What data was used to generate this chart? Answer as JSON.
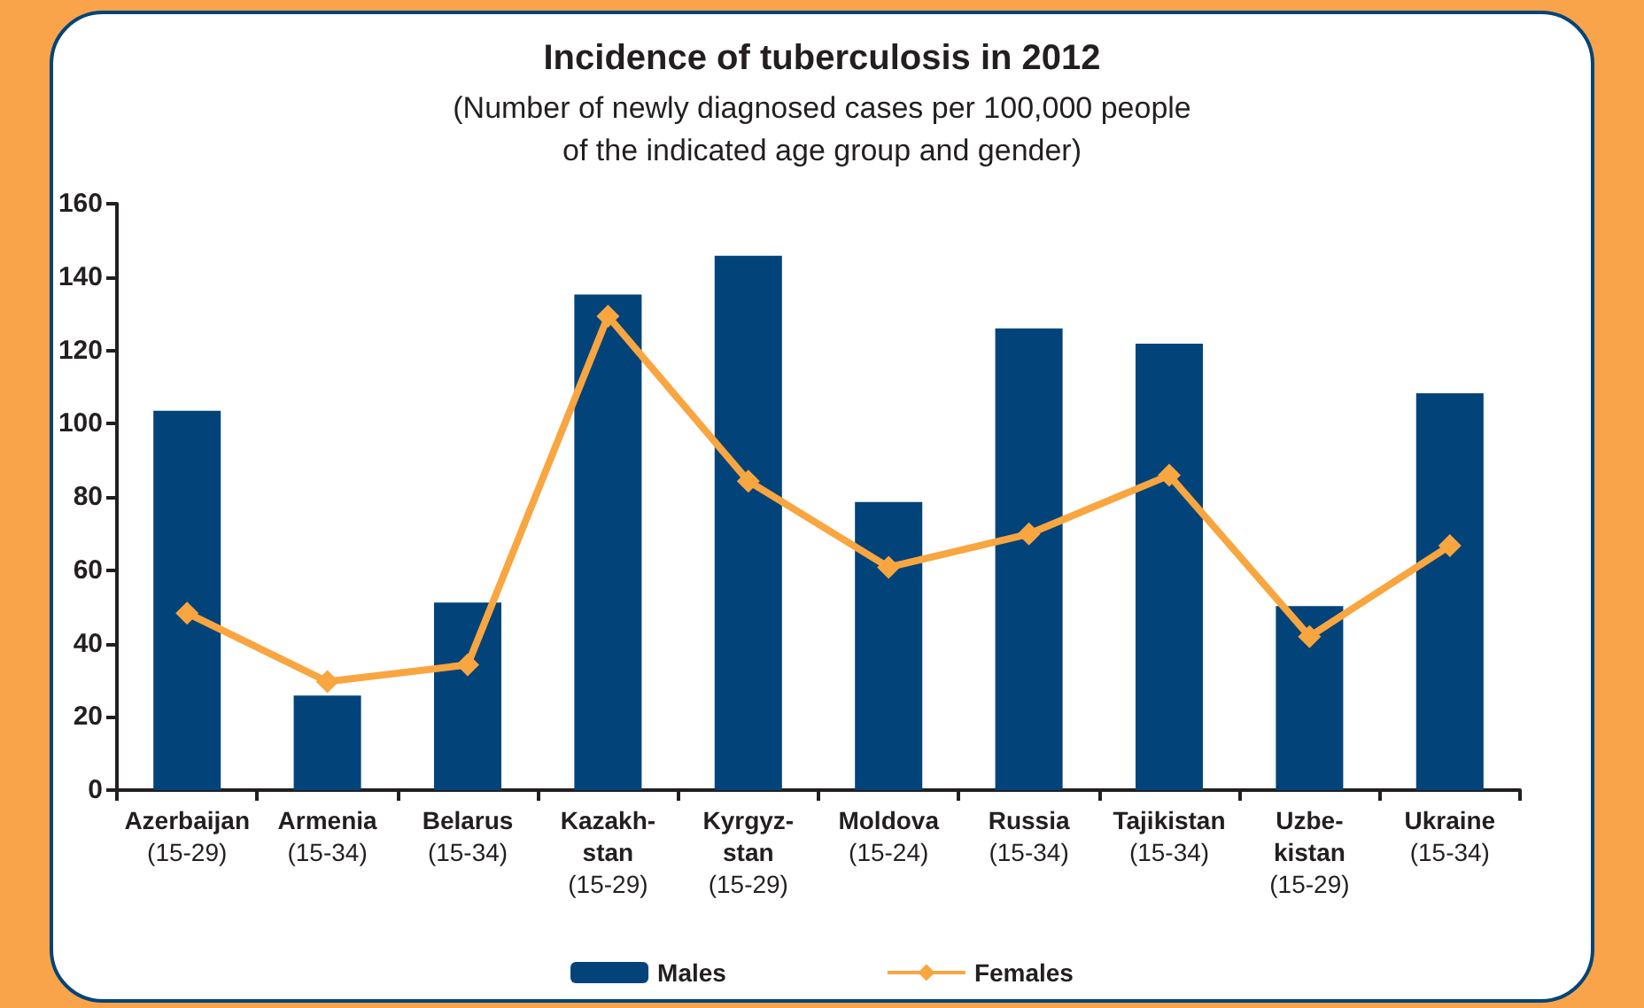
{
  "chart_data": {
    "type": "bar",
    "title": "Incidence of tuberculosis in 2012",
    "subtitle": "(Number of newly diagnosed cases per 100,000 people\nof the indicated age group and gender)",
    "categories": [
      "Azerbaijan\n(15-29)",
      "Armenia\n(15-34)",
      "Belarus\n(15-34)",
      "Kazakh-\nstan\n(15-29)",
      "Kyrgyz-\nstan\n(15-29)",
      "Moldova\n(15-24)",
      "Russia\n(15-34)",
      "Tajikistan\n(15-34)",
      "Uzbe-\nkistan\n(15-29)",
      "Ukraine\n(15-34)"
    ],
    "series": [
      {
        "name": "Males",
        "color": "#02447a",
        "values": [
          103.5,
          25.8,
          51.2,
          135.2,
          145.8,
          78.6,
          126,
          121.8,
          50.2,
          108.3
        ]
      },
      {
        "name": "Females",
        "type": "line",
        "color": "#f9a540",
        "values": [
          48.3,
          29.6,
          34.2,
          129.3,
          84.3,
          60.8,
          69.9,
          85.9,
          41.9,
          66.7
        ]
      }
    ],
    "ylim": [
      0,
      160
    ],
    "yticks": [
      0,
      20,
      40,
      60,
      80,
      100,
      120,
      140,
      160
    ],
    "grid": false,
    "legend": "bottom",
    "marker": "diamond",
    "line_style": "solid"
  }
}
